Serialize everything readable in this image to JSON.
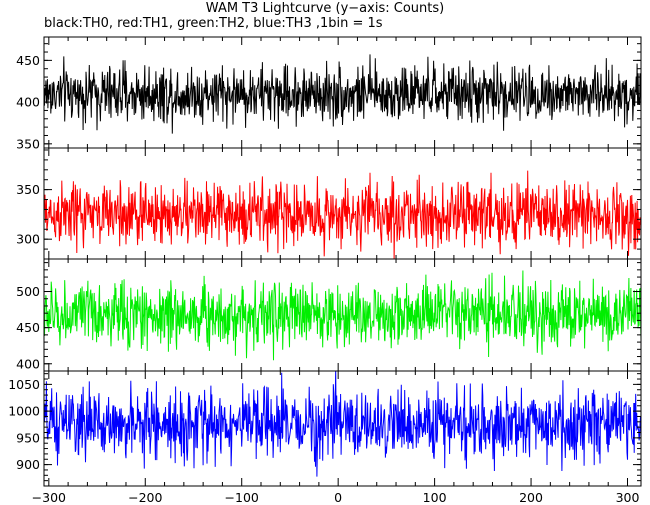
{
  "title": "WAM T3 Lightcurve (y−axis: Counts)",
  "subtitle": "black:TH0, red:TH1, green:TH2, blue:TH3 ,1bin = 1s",
  "chart_data": {
    "type": "line",
    "x_range": [
      -305,
      314
    ],
    "x_ticks": [
      -300,
      -200,
      -100,
      0,
      100,
      200,
      300
    ],
    "x_tick_labels": [
      "−300",
      "−200",
      "−100",
      "0",
      "100",
      "200",
      "300"
    ],
    "panels": [
      {
        "series": "TH0",
        "color": "#000000",
        "mean": 410,
        "sd": 17,
        "ylim": [
          345,
          478
        ],
        "y_ticks": [
          350,
          400,
          450
        ],
        "y_tick_labels": [
          "350",
          "400",
          "450"
        ]
      },
      {
        "series": "TH1",
        "color": "#ff0000",
        "mean": 325,
        "sd": 16,
        "ylim": [
          280,
          392
        ],
        "y_ticks": [
          300,
          350
        ],
        "y_tick_labels": [
          "300",
          "350"
        ]
      },
      {
        "series": "TH2",
        "color": "#00ee00",
        "mean": 468,
        "sd": 22,
        "ylim": [
          390,
          545
        ],
        "y_ticks": [
          400,
          450,
          500
        ],
        "y_tick_labels": [
          "400",
          "450",
          "500"
        ]
      },
      {
        "series": "TH3",
        "color": "#0000ff",
        "mean": 975,
        "sd": 32,
        "ylim": [
          860,
          1075
        ],
        "y_ticks": [
          900,
          950,
          1000,
          1050
        ],
        "y_tick_labels": [
          "900",
          "950",
          "1000",
          "1050"
        ]
      }
    ]
  }
}
